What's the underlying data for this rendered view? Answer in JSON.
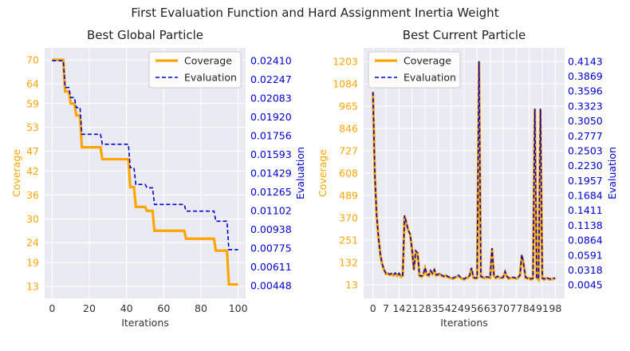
{
  "title": "First Evaluation Function and Hard Assignment Inertia Weight",
  "colors": {
    "coverage": "#ffa500",
    "evaluation": "#0000cc",
    "panel_bg": "#eaeaf2",
    "grid": "#ffffff"
  },
  "chart_data": [
    {
      "type": "line",
      "title": "Best Global Particle",
      "xlabel": "Iterations",
      "ylabel": "Coverage",
      "y2label": "Evaluation",
      "xlim": [
        -4,
        104
      ],
      "ylim": [
        10,
        73
      ],
      "y2lim": [
        0.00336,
        0.02522
      ],
      "x_ticks": [
        "0",
        "20",
        "40",
        "60",
        "80",
        "100"
      ],
      "x_tick_values": [
        0,
        20,
        40,
        60,
        80,
        100
      ],
      "y_ticks": [
        "70",
        "64",
        "59",
        "53",
        "47",
        "42",
        "36",
        "30",
        "24",
        "19",
        "13"
      ],
      "y_tick_values": [
        70,
        64,
        59,
        53,
        47,
        42,
        36,
        30,
        24,
        19,
        13
      ],
      "y2_ticks": [
        "0.02410",
        "0.02247",
        "0.02083",
        "0.01920",
        "0.01756",
        "0.01593",
        "0.01429",
        "0.01265",
        "0.01102",
        "0.00938",
        "0.00775",
        "0.00611",
        "0.00448"
      ],
      "y2_tick_values": [
        0.0241,
        0.02247,
        0.02083,
        0.0192,
        0.01756,
        0.01593,
        0.01429,
        0.01265,
        0.01102,
        0.00938,
        0.00775,
        0.00611,
        0.00448
      ],
      "legend": "top-right",
      "grid": true,
      "series": [
        {
          "name": "Coverage",
          "style": "solid",
          "x": [
            0,
            6,
            7,
            9,
            10,
            12,
            13,
            15,
            16,
            26,
            27,
            41,
            42,
            44,
            45,
            50,
            51,
            54,
            55,
            71,
            72,
            87,
            88,
            94,
            95,
            100
          ],
          "y": [
            70,
            70,
            62,
            62,
            59,
            59,
            56,
            56,
            48,
            48,
            45,
            45,
            38,
            38,
            33,
            33,
            32,
            32,
            27,
            27,
            25,
            25,
            22,
            22,
            13.5,
            13.5
          ]
        },
        {
          "name": "Evaluation",
          "style": "dashed",
          "x": [
            0,
            6,
            7,
            9,
            10,
            12,
            13,
            15,
            16,
            26,
            27,
            41,
            42,
            44,
            45,
            50,
            51,
            54,
            55,
            71,
            72,
            87,
            88,
            94,
            95,
            100
          ],
          "y": [
            0.0241,
            0.0241,
            0.02176,
            0.02176,
            0.02088,
            0.02088,
            0.02001,
            0.02001,
            0.01768,
            0.01768,
            0.01681,
            0.01681,
            0.01476,
            0.01476,
            0.0133,
            0.0133,
            0.01301,
            0.01301,
            0.01155,
            0.01155,
            0.01097,
            0.01097,
            0.01009,
            0.01009,
            0.00761,
            0.00761
          ]
        }
      ]
    },
    {
      "type": "line",
      "title": "Best Current Particle",
      "xlabel": "Iterations",
      "ylabel": "Coverage",
      "y2label": "Evaluation",
      "xlim": [
        -5,
        103
      ],
      "ylim": [
        -60,
        1276
      ],
      "y2lim": [
        -0.02,
        0.4388
      ],
      "x_ticks": [
        "0",
        "7",
        "14",
        "21",
        "28",
        "35",
        "42",
        "49",
        "56",
        "63",
        "70",
        "77",
        "84",
        "91",
        "98"
      ],
      "x_tick_values": [
        0,
        7,
        14,
        21,
        28,
        35,
        42,
        49,
        56,
        63,
        70,
        77,
        84,
        91,
        98
      ],
      "y_ticks": [
        "1203",
        "1084",
        "965",
        "846",
        "727",
        "608",
        "489",
        "370",
        "251",
        "132",
        "13"
      ],
      "y_tick_values": [
        1203,
        1084,
        965,
        846,
        727,
        608,
        489,
        370,
        251,
        132,
        13
      ],
      "y2_ticks": [
        "0.4143",
        "0.3869",
        "0.3596",
        "0.3323",
        "0.3050",
        "0.2777",
        "0.2503",
        "0.2230",
        "0.1957",
        "0.1684",
        "0.1411",
        "0.1138",
        "0.0864",
        "0.0591",
        "0.0318",
        "0.0045"
      ],
      "y2_tick_values": [
        0.4143,
        0.3869,
        0.3596,
        0.3323,
        0.305,
        0.2777,
        0.2503,
        0.223,
        0.1957,
        0.1684,
        0.1411,
        0.1138,
        0.0864,
        0.0591,
        0.0318,
        0.0045
      ],
      "legend": "top-left",
      "grid": true,
      "series": [
        {
          "name": "Coverage",
          "style": "solid",
          "x": [
            0,
            1,
            2,
            3,
            4,
            5,
            6,
            7,
            8,
            9,
            10,
            11,
            12,
            13,
            14,
            15,
            16,
            17,
            18,
            19,
            20,
            21,
            22,
            23,
            24,
            25,
            26,
            27,
            28,
            29,
            30,
            31,
            32,
            33,
            34,
            35,
            36,
            37,
            38,
            39,
            40,
            41,
            42,
            43,
            44,
            45,
            46,
            47,
            48,
            49,
            50,
            51,
            52,
            53,
            54,
            55,
            56,
            57,
            58,
            59,
            60,
            61,
            62,
            63,
            64,
            65,
            66,
            67,
            68,
            69,
            70,
            71,
            72,
            73,
            74,
            75,
            76,
            77,
            78,
            79,
            80,
            81,
            82,
            83,
            84,
            85,
            86,
            87,
            88,
            89,
            90,
            91,
            92,
            93,
            94,
            95,
            96,
            97,
            98
          ],
          "y": [
            1040,
            600,
            380,
            260,
            170,
            120,
            90,
            70,
            72,
            65,
            70,
            62,
            72,
            60,
            70,
            55,
            60,
            380,
            340,
            300,
            280,
            200,
            90,
            190,
            180,
            60,
            55,
            62,
            100,
            65,
            60,
            85,
            70,
            90,
            62,
            65,
            70,
            60,
            55,
            62,
            55,
            50,
            48,
            45,
            50,
            55,
            60,
            50,
            45,
            40,
            48,
            50,
            60,
            100,
            50,
            45,
            48,
            1203,
            55,
            50,
            48,
            52,
            50,
            48,
            205,
            60,
            48,
            55,
            50,
            48,
            50,
            80,
            55,
            45,
            48,
            50,
            48,
            45,
            50,
            60,
            170,
            120,
            50,
            45,
            48,
            40,
            45,
            950,
            50,
            40,
            950,
            45,
            40,
            48,
            45,
            40,
            42,
            45,
            43
          ]
        },
        {
          "name": "Evaluation",
          "style": "dashed",
          "x": [
            0,
            1,
            2,
            3,
            4,
            5,
            6,
            7,
            8,
            9,
            10,
            11,
            12,
            13,
            14,
            15,
            16,
            17,
            18,
            19,
            20,
            21,
            22,
            23,
            24,
            25,
            26,
            27,
            28,
            29,
            30,
            31,
            32,
            33,
            34,
            35,
            36,
            37,
            38,
            39,
            40,
            41,
            42,
            43,
            44,
            45,
            46,
            47,
            48,
            49,
            50,
            51,
            52,
            53,
            54,
            55,
            56,
            57,
            58,
            59,
            60,
            61,
            62,
            63,
            64,
            65,
            66,
            67,
            68,
            69,
            70,
            71,
            72,
            73,
            74,
            75,
            76,
            77,
            78,
            79,
            80,
            81,
            82,
            83,
            84,
            85,
            86,
            87,
            88,
            89,
            90,
            91,
            92,
            93,
            94,
            95,
            96,
            97,
            98
          ],
          "y": [
            0.3581,
            0.2074,
            0.132,
            0.0909,
            0.0601,
            0.0429,
            0.0326,
            0.0258,
            0.0265,
            0.0241,
            0.0258,
            0.023,
            0.0265,
            0.0224,
            0.0258,
            0.0206,
            0.0224,
            0.132,
            0.1183,
            0.1046,
            0.0977,
            0.0703,
            0.0326,
            0.0669,
            0.0635,
            0.0224,
            0.0206,
            0.023,
            0.0361,
            0.0241,
            0.0224,
            0.0309,
            0.0258,
            0.0326,
            0.023,
            0.0241,
            0.0258,
            0.0224,
            0.0206,
            0.023,
            0.0206,
            0.0189,
            0.0182,
            0.0172,
            0.0189,
            0.0206,
            0.0224,
            0.0189,
            0.0172,
            0.0155,
            0.0182,
            0.0189,
            0.0224,
            0.0361,
            0.0189,
            0.0172,
            0.0182,
            0.4143,
            0.0206,
            0.0189,
            0.0182,
            0.0196,
            0.0189,
            0.0182,
            0.0721,
            0.0224,
            0.0182,
            0.0206,
            0.0189,
            0.0182,
            0.0189,
            0.0292,
            0.0206,
            0.0172,
            0.0182,
            0.0189,
            0.0182,
            0.0172,
            0.0189,
            0.0224,
            0.0601,
            0.0429,
            0.0189,
            0.0172,
            0.0182,
            0.0155,
            0.0172,
            0.3273,
            0.0189,
            0.0155,
            0.3273,
            0.0172,
            0.0155,
            0.0182,
            0.0172,
            0.0155,
            0.0162,
            0.0172,
            0.0165
          ]
        }
      ]
    }
  ]
}
